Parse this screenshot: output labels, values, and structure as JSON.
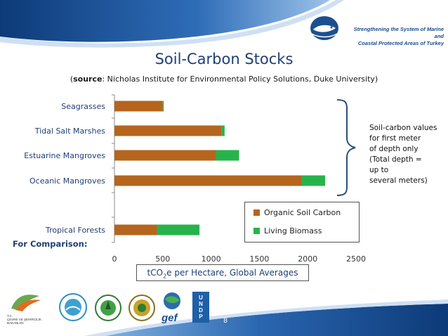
{
  "header": {
    "org_line1": "Strengthening the System of Marine and",
    "org_line2": "Coastal Protected Areas of Turkey"
  },
  "title": "Soil-Carbon Stocks",
  "source_label": "source",
  "source_text": ": Nicholas Institute for Environmental Policy Solutions, Duke University)",
  "source_open": "(",
  "side_note": "Soil-carbon values\nfor first meter\nof depth only\n(Total depth  =\nup to\nseveral meters)",
  "comparison_label": "For Comparison:",
  "xlabel_prefix": "tCO",
  "xlabel_sub": "2",
  "xlabel_suffix": "e per Hectare, Global Averages",
  "page_number": "8",
  "footer": {
    "logo_text_1": "T.C.\nÇEVRE VE ŞEHİRCİLİK\nBAKANLIĞI",
    "gef_text": "gef",
    "undp_text": "UNDP"
  },
  "colors": {
    "organic_soil": "#b5651d",
    "living_biomass": "#27b34b",
    "banner_dark": "#1c4f8f",
    "title": "#1f3f74"
  },
  "chart_data": {
    "type": "bar",
    "orientation": "horizontal",
    "stacked": true,
    "categories": [
      "Seagrasses",
      "Tidal Salt Marshes",
      "Estuarine Mangroves",
      "Oceanic Mangroves",
      "",
      "Tropical Forests"
    ],
    "series": [
      {
        "name": "Organic Soil Carbon",
        "values": [
          500,
          1110,
          1050,
          1940,
          null,
          440
        ]
      },
      {
        "name": "Living Biomass",
        "values": [
          10,
          30,
          240,
          240,
          null,
          440
        ]
      }
    ],
    "xlim": [
      0,
      2500
    ],
    "xticks": [
      0,
      500,
      1000,
      1500,
      2000,
      2500
    ],
    "legend": "bottom-right"
  }
}
